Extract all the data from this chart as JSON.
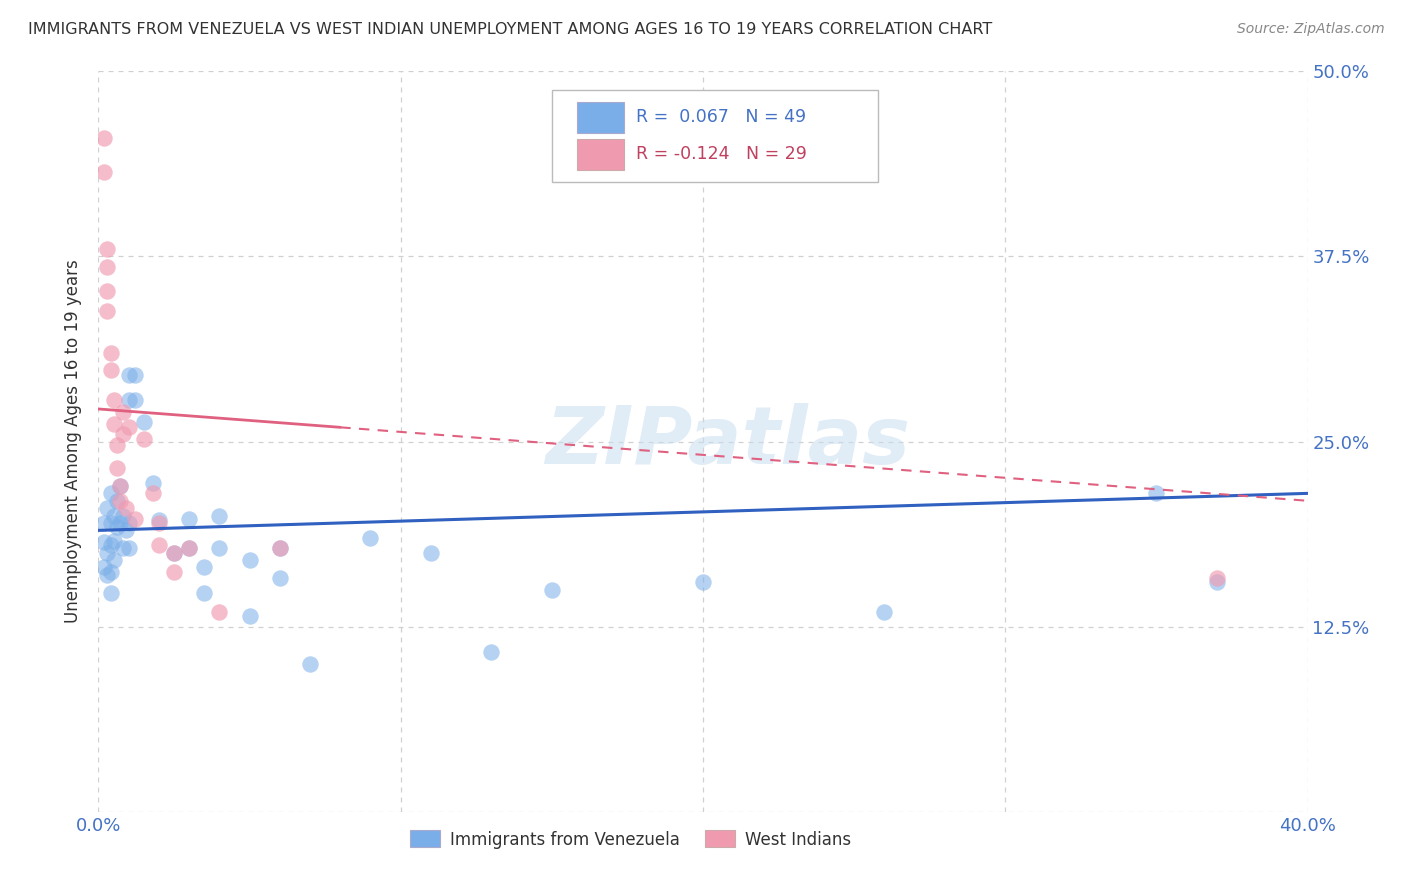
{
  "title": "IMMIGRANTS FROM VENEZUELA VS WEST INDIAN UNEMPLOYMENT AMONG AGES 16 TO 19 YEARS CORRELATION CHART",
  "source": "Source: ZipAtlas.com",
  "ylabel": "Unemployment Among Ages 16 to 19 years",
  "xlim": [
    0.0,
    0.4
  ],
  "ylim": [
    0.0,
    0.5
  ],
  "yticks": [
    0.0,
    0.125,
    0.25,
    0.375,
    0.5
  ],
  "xticks": [
    0.0,
    0.1,
    0.2,
    0.3,
    0.4
  ],
  "xtick_labels": [
    "0.0%",
    "",
    "",
    "",
    "40.0%"
  ],
  "ytick_labels_right": [
    "12.5%",
    "25.0%",
    "37.5%",
    "50.0%"
  ],
  "watermark": "ZIPatlas",
  "background_color": "#ffffff",
  "grid_color": "#d0d0d0",
  "axis_color": "#4472c4",
  "title_color": "#333333",
  "venezuela_color": "#7aaee8",
  "westindian_color": "#f09ab0",
  "venezuela_line_color": "#3060c0",
  "westindian_line_color": "#e06080",
  "venezuela_R": 0.067,
  "westindian_R": -0.124,
  "venezuela_line_start_y": 0.19,
  "venezuela_line_end_y": 0.215,
  "westindian_line_start_y": 0.272,
  "westindian_line_end_y": 0.21,
  "venezuela_points": [
    [
      0.002,
      0.195
    ],
    [
      0.002,
      0.182
    ],
    [
      0.002,
      0.165
    ],
    [
      0.003,
      0.205
    ],
    [
      0.003,
      0.175
    ],
    [
      0.003,
      0.16
    ],
    [
      0.004,
      0.215
    ],
    [
      0.004,
      0.195
    ],
    [
      0.004,
      0.18
    ],
    [
      0.004,
      0.162
    ],
    [
      0.004,
      0.148
    ],
    [
      0.005,
      0.2
    ],
    [
      0.005,
      0.183
    ],
    [
      0.005,
      0.17
    ],
    [
      0.006,
      0.21
    ],
    [
      0.006,
      0.192
    ],
    [
      0.007,
      0.22
    ],
    [
      0.007,
      0.195
    ],
    [
      0.008,
      0.2
    ],
    [
      0.008,
      0.178
    ],
    [
      0.009,
      0.19
    ],
    [
      0.01,
      0.295
    ],
    [
      0.01,
      0.278
    ],
    [
      0.01,
      0.195
    ],
    [
      0.01,
      0.178
    ],
    [
      0.012,
      0.295
    ],
    [
      0.012,
      0.278
    ],
    [
      0.015,
      0.263
    ],
    [
      0.018,
      0.222
    ],
    [
      0.02,
      0.197
    ],
    [
      0.025,
      0.175
    ],
    [
      0.03,
      0.198
    ],
    [
      0.03,
      0.178
    ],
    [
      0.035,
      0.165
    ],
    [
      0.035,
      0.148
    ],
    [
      0.04,
      0.2
    ],
    [
      0.04,
      0.178
    ],
    [
      0.05,
      0.17
    ],
    [
      0.05,
      0.132
    ],
    [
      0.06,
      0.178
    ],
    [
      0.06,
      0.158
    ],
    [
      0.07,
      0.1
    ],
    [
      0.09,
      0.185
    ],
    [
      0.11,
      0.175
    ],
    [
      0.13,
      0.108
    ],
    [
      0.15,
      0.15
    ],
    [
      0.2,
      0.155
    ],
    [
      0.26,
      0.135
    ],
    [
      0.35,
      0.215
    ],
    [
      0.37,
      0.155
    ]
  ],
  "westindian_points": [
    [
      0.002,
      0.455
    ],
    [
      0.002,
      0.432
    ],
    [
      0.003,
      0.38
    ],
    [
      0.003,
      0.368
    ],
    [
      0.003,
      0.352
    ],
    [
      0.003,
      0.338
    ],
    [
      0.004,
      0.31
    ],
    [
      0.004,
      0.298
    ],
    [
      0.005,
      0.278
    ],
    [
      0.005,
      0.262
    ],
    [
      0.006,
      0.248
    ],
    [
      0.006,
      0.232
    ],
    [
      0.007,
      0.22
    ],
    [
      0.007,
      0.21
    ],
    [
      0.008,
      0.27
    ],
    [
      0.008,
      0.255
    ],
    [
      0.009,
      0.205
    ],
    [
      0.01,
      0.26
    ],
    [
      0.012,
      0.198
    ],
    [
      0.015,
      0.252
    ],
    [
      0.018,
      0.215
    ],
    [
      0.02,
      0.195
    ],
    [
      0.02,
      0.18
    ],
    [
      0.025,
      0.175
    ],
    [
      0.025,
      0.162
    ],
    [
      0.03,
      0.178
    ],
    [
      0.04,
      0.135
    ],
    [
      0.06,
      0.178
    ],
    [
      0.37,
      0.158
    ]
  ]
}
